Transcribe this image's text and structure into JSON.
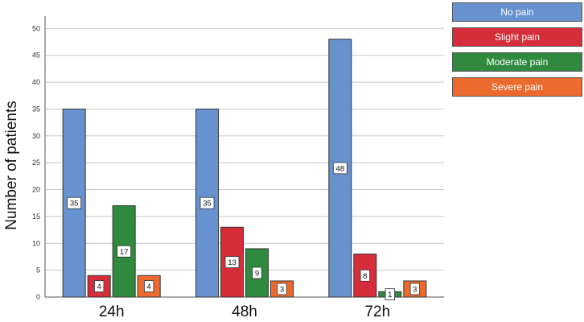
{
  "chart_data": {
    "type": "bar",
    "ylabel": "Number of patients",
    "xlabel": "",
    "categories": [
      "24h",
      "48h",
      "72h"
    ],
    "ylim": [
      0,
      52
    ],
    "yticks": [
      0,
      5,
      10,
      15,
      20,
      25,
      30,
      35,
      40,
      45,
      50
    ],
    "grid": true,
    "legend_position": "top-right",
    "series": [
      {
        "name": "No pain",
        "color": "#6891d0",
        "values": [
          35,
          35,
          48
        ]
      },
      {
        "name": "Slight pain",
        "color": "#d52d3a",
        "values": [
          4,
          13,
          8
        ]
      },
      {
        "name": "Moderate pain",
        "color": "#2f8a3e",
        "values": [
          17,
          9,
          1
        ]
      },
      {
        "name": "Severe pain",
        "color": "#ec6a2e",
        "values": [
          4,
          3,
          3
        ]
      }
    ]
  }
}
